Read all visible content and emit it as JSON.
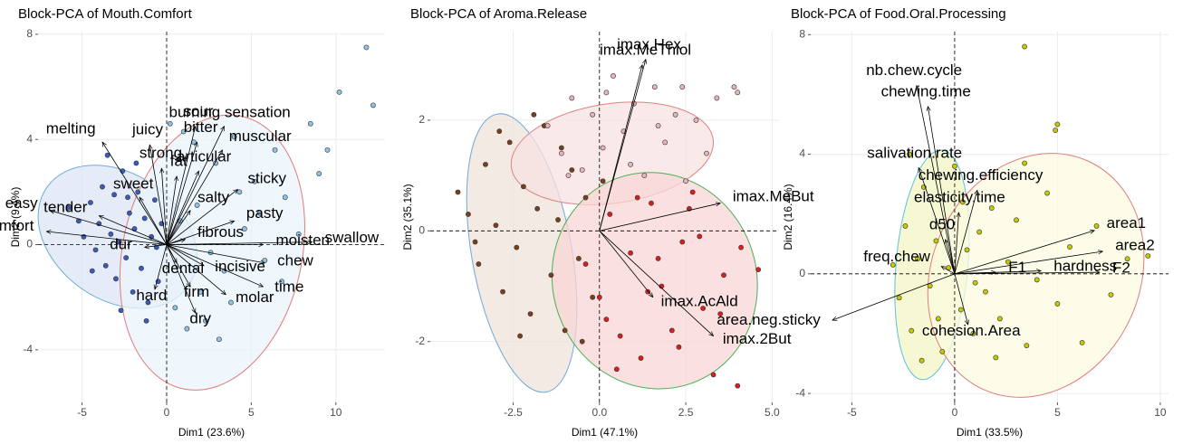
{
  "chart_data": [
    {
      "type": "biplot",
      "title": "Block-PCA of Mouth.Comfort",
      "xlabel": "Dim1 (23.6%)",
      "ylabel": "Dim2 (9.4%)",
      "xlim": [
        -7.6,
        12.9
      ],
      "ylim": [
        -6.0,
        8.1
      ],
      "xticks": [
        -5,
        0,
        5,
        10
      ],
      "yticks": [
        -4,
        0,
        4,
        8
      ],
      "ellipses": [
        {
          "color": "#6baed6",
          "fill": "#dce6f6",
          "cx": -2.9,
          "cy": 0.3,
          "rx": 5.1,
          "ry": 2.4,
          "angle": 35
        },
        {
          "color": "#e07b7b",
          "fill": "#eaf4fb",
          "cx": 2.7,
          "cy": -0.3,
          "rx": 5.3,
          "ry": 5.3,
          "angle": 12
        }
      ],
      "groups": [
        {
          "color": "#3a5bbf",
          "x": [
            -5.8,
            -5.2,
            -4.9,
            -4.5,
            -4.2,
            -4.0,
            -3.8,
            -3.6,
            -3.3,
            -3.1,
            -3.0,
            -2.8,
            -2.6,
            -2.4,
            -2.2,
            -2.0,
            -1.9,
            -1.7,
            -1.5,
            -1.3,
            -1.1,
            -0.9,
            -0.7,
            -0.5,
            -0.3,
            -3.5,
            -2.7,
            -1.8,
            -1.2,
            -4.4,
            -2.3,
            -0.6
          ],
          "y": [
            1.4,
            0.9,
            0.3,
            1.6,
            -0.2,
            0.8,
            2.2,
            -0.8,
            0.4,
            1.9,
            -1.3,
            0.1,
            2.8,
            -0.5,
            1.2,
            -1.8,
            0.6,
            2.0,
            -0.9,
            1.0,
            -2.2,
            0.3,
            1.7,
            -1.4,
            0.8,
            3.4,
            -2.5,
            3.1,
            -2.9,
            -1.0,
            1.8,
            -0.1
          ]
        },
        {
          "color": "#8ec3e6",
          "x": [
            0.5,
            1.2,
            1.8,
            2.3,
            2.9,
            3.4,
            4.0,
            4.6,
            5.2,
            5.8,
            6.4,
            7.0,
            7.8,
            8.5,
            9.5,
            10.2,
            11.8,
            12.2,
            1.0,
            2.0,
            3.1,
            4.3,
            0.8,
            1.6,
            2.6,
            3.8,
            5.5,
            6.8,
            9.0,
            0.2
          ],
          "y": [
            -2.4,
            -3.2,
            1.5,
            -2.9,
            3.1,
            -1.0,
            4.1,
            0.6,
            2.4,
            -0.6,
            3.6,
            1.8,
            0.4,
            4.6,
            3.6,
            5.8,
            7.5,
            5.3,
            4.3,
            -1.8,
            -3.6,
            2.0,
            0.9,
            3.9,
            -0.3,
            -2.2,
            1.2,
            -1.4,
            2.7,
            4.6
          ]
        }
      ],
      "arrows": {
        "names": [
          "sour",
          "burning sensation",
          "bitter",
          "muscular",
          "juicy",
          "strong",
          "melting",
          "fat",
          "articular",
          "sticky",
          "sweet",
          "salty",
          "easy",
          "tender",
          "pasty",
          "comfort",
          "fibrous",
          "dur",
          "moisten",
          "swallow",
          "dental",
          "incisive",
          "chew",
          "time",
          "hard",
          "firm",
          "molar",
          "dry"
        ],
        "x": [
          1.7,
          3.4,
          1.8,
          3.3,
          -1.0,
          -0.3,
          -3.8,
          0.6,
          1.9,
          4.2,
          -1.6,
          1.4,
          -6.9,
          -4.0,
          4.0,
          -7.1,
          1.1,
          -1.3,
          5.7,
          8.6,
          0.6,
          2.2,
          5.8,
          5.7,
          -0.7,
          1.4,
          3.5,
          1.7
        ],
        "y": [
          4.5,
          4.5,
          3.9,
          3.6,
          3.8,
          2.9,
          3.9,
          2.6,
          2.8,
          2.1,
          1.8,
          1.3,
          1.3,
          1.1,
          0.9,
          0.5,
          0.2,
          -0.1,
          0.0,
          0.1,
          -0.7,
          -0.8,
          -0.7,
          -1.6,
          -1.7,
          -1.6,
          -1.9,
          -2.6
        ]
      }
    },
    {
      "type": "biplot",
      "title": "Block-PCA of Aroma.Release",
      "xlabel": "Dim1 (47.1%)",
      "ylabel": "Dim2 (35.1%)",
      "xlim": [
        -4.9,
        5.2
      ],
      "ylim": [
        -3.1,
        3.6
      ],
      "xticks": [
        -2.5,
        {
          "value": 0,
          "label": "0.0"
        },
        2.5,
        {
          "value": 5,
          "label": "5.0"
        }
      ],
      "yticks": [
        -2,
        0,
        2
      ],
      "ellipses": [
        {
          "color": "#6fa8dc",
          "fill": "#efe3da",
          "cx": -2.25,
          "cy": -0.4,
          "rx": 1.45,
          "ry": 2.55,
          "angle": -10
        },
        {
          "color": "#e08080",
          "fill": "#f7e2e2",
          "cx": 0.37,
          "cy": 1.4,
          "rx": 2.95,
          "ry": 0.9,
          "angle": -8
        },
        {
          "color": "#4caf50",
          "fill": "#f8d6d6",
          "cx": 1.6,
          "cy": -0.9,
          "rx": 2.95,
          "ry": 1.97,
          "angle": -20
        }
      ],
      "groups": [
        {
          "color": "#7b3f1d",
          "x": [
            -4.1,
            -3.8,
            -3.5,
            -3.3,
            -3.0,
            -2.8,
            -2.6,
            -2.4,
            -2.2,
            -2.0,
            -1.8,
            -1.6,
            -1.4,
            -1.2,
            -1.0,
            -0.8,
            -0.6,
            -0.4,
            -0.2,
            0.1,
            -2.9,
            -1.9,
            -1.1,
            -3.6,
            -2.3,
            -0.5
          ],
          "y": [
            0.7,
            0.3,
            -0.6,
            1.2,
            0.1,
            -1.1,
            1.6,
            -0.3,
            0.8,
            -1.5,
            0.4,
            1.9,
            -0.8,
            0.2,
            -1.8,
            1.1,
            -0.5,
            0.6,
            -1.2,
            0.9,
            1.8,
            2.1,
            1.5,
            -0.2,
            -1.9,
            -2.0
          ]
        },
        {
          "color": "#e8b4bc",
          "x": [
            -1.5,
            -1.1,
            -0.8,
            -0.5,
            -0.2,
            0.1,
            0.4,
            0.7,
            1.0,
            1.3,
            1.6,
            1.9,
            2.2,
            2.5,
            2.8,
            3.1,
            3.4,
            -0.9,
            0.2,
            0.9,
            1.7,
            2.4,
            3.9,
            4.0
          ],
          "y": [
            1.9,
            1.4,
            2.4,
            1.1,
            2.1,
            1.5,
            2.8,
            1.8,
            2.3,
            1.0,
            2.6,
            1.6,
            2.1,
            0.9,
            2.0,
            1.4,
            2.4,
            1.0,
            2.5,
            1.2,
            1.9,
            2.6,
            2.6,
            2.5
          ]
        },
        {
          "color": "#d62020",
          "x": [
            -0.4,
            0.0,
            0.3,
            0.6,
            0.9,
            1.2,
            1.5,
            1.8,
            2.1,
            2.4,
            2.7,
            3.0,
            3.3,
            3.6,
            4.0,
            4.6,
            0.5,
            1.1,
            1.7,
            2.3,
            2.9,
            3.5,
            0.2,
            1.4,
            2.6,
            4.1
          ],
          "y": [
            -0.6,
            -1.2,
            0.3,
            -1.9,
            -0.4,
            -2.3,
            0.5,
            -1.0,
            -1.8,
            -0.2,
            0.7,
            -1.4,
            -2.6,
            -0.8,
            -2.8,
            -0.7,
            -2.5,
            0.6,
            -0.5,
            -2.1,
            -0.1,
            -1.5,
            -1.6,
            -1.1,
            0.4,
            -0.3
          ]
        }
      ],
      "arrows": {
        "names": [
          "imax.Hex",
          "imax.MeThiol",
          "imax.MeBut",
          "imax.AcAld",
          "imax.2But"
        ],
        "x": [
          1.34,
          1.24,
          3.5,
          1.55,
          3.3
        ],
        "y": [
          3.1,
          3.0,
          0.5,
          -1.2,
          -1.9
        ]
      }
    },
    {
      "type": "biplot",
      "title": "Block-PCA of Food.Oral.Processing",
      "xlabel": "Dim1 (33.5%)",
      "ylabel": "Dim2 (16.4%)",
      "xlim": [
        -7.0,
        10.4
      ],
      "ylim": [
        -4.3,
        8.1
      ],
      "xticks": [
        -5,
        0,
        5,
        10
      ],
      "yticks": [
        -4,
        0,
        4,
        8
      ],
      "ellipses": [
        {
          "color": "#5bc0de",
          "fill": "#f3f6c4",
          "cx": -1.1,
          "cy": 0.3,
          "rx": 1.75,
          "ry": 3.85,
          "angle": 5
        },
        {
          "color": "#e07b7b",
          "fill": "#fbfbe0",
          "cx": 3.95,
          "cy": -0.05,
          "rx": 5.05,
          "ry": 4.2,
          "angle": 25
        }
      ],
      "groups": [
        {
          "color": "#c8c800",
          "x": [
            -3.0,
            -2.7,
            -2.4,
            -2.1,
            -1.8,
            -1.5,
            -1.2,
            -0.9,
            -0.6,
            -0.3,
            0.0,
            0.3,
            0.6,
            0.9,
            1.2,
            1.5,
            1.8,
            2.2,
            2.6,
            3.0,
            3.5,
            4.0,
            4.5,
            5.0,
            5.6,
            6.2,
            6.9,
            7.6,
            8.4,
            9.4,
            -2.2,
            -1.6,
            -0.8,
            0.4,
            1.0,
            2.0,
            3.4,
            4.9,
            3.4,
            5.0
          ],
          "y": [
            0.3,
            -0.8,
            1.6,
            -1.9,
            0.5,
            2.9,
            -0.4,
            1.1,
            -2.6,
            0.2,
            3.6,
            -1.2,
            0.8,
            -2.0,
            1.4,
            -0.6,
            2.2,
            -1.5,
            0.4,
            1.8,
            -2.4,
            -0.2,
            2.7,
            -1.0,
            0.9,
            -2.3,
            1.6,
            -0.7,
            0.5,
            0.6,
            4.0,
            -2.9,
            -1.5,
            2.4,
            -0.3,
            -2.8,
            7.6,
            4.8,
            3.7,
            5.0
          ]
        }
      ],
      "arrows": {
        "names": [
          "nb.chew.cycle",
          "chewing.time",
          "salivation.rate",
          "chewing.efficiency",
          "elasticity.time",
          "area1",
          "d50",
          "area2",
          "freq.chew",
          "F1",
          "hardness",
          "F2",
          "area.neg.sticky",
          "cohesion.Area"
        ],
        "x": [
          -1.85,
          -1.3,
          -1.75,
          1.1,
          0.2,
          6.8,
          -0.45,
          7.2,
          -0.65,
          2.0,
          4.2,
          7.05,
          -5.95,
          0.65
        ],
        "y": [
          6.3,
          5.6,
          3.55,
          2.8,
          2.05,
          1.45,
          1.15,
          0.75,
          0.25,
          0.05,
          0.1,
          0.05,
          -1.55,
          -1.7
        ]
      }
    }
  ]
}
